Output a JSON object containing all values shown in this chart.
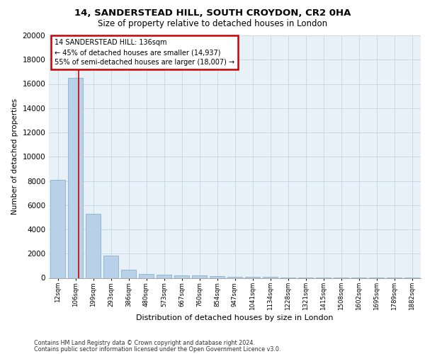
{
  "title1": "14, SANDERSTEAD HILL, SOUTH CROYDON, CR2 0HA",
  "title2": "Size of property relative to detached houses in London",
  "xlabel": "Distribution of detached houses by size in London",
  "ylabel": "Number of detached properties",
  "bar_values": [
    8100,
    16500,
    5300,
    1850,
    650,
    350,
    275,
    225,
    225,
    150,
    100,
    80,
    60,
    50,
    40,
    30,
    25,
    20,
    15,
    10,
    5
  ],
  "bar_labels": [
    "12sqm",
    "106sqm",
    "199sqm",
    "293sqm",
    "386sqm",
    "480sqm",
    "573sqm",
    "667sqm",
    "760sqm",
    "854sqm",
    "947sqm",
    "1041sqm",
    "1134sqm",
    "1228sqm",
    "1321sqm",
    "1415sqm",
    "1508sqm",
    "1602sqm",
    "1695sqm",
    "1789sqm",
    "1882sqm"
  ],
  "bar_color": "#b8d0e8",
  "bar_edge_color": "#7aaac8",
  "bar_width": 0.85,
  "vline_x": 1.18,
  "vline_color": "#cc0000",
  "ylim": [
    0,
    20000
  ],
  "yticks": [
    0,
    2000,
    4000,
    6000,
    8000,
    10000,
    12000,
    14000,
    16000,
    18000,
    20000
  ],
  "grid_color": "#c8dae8",
  "background_color": "#e8f0f8",
  "annotation_title": "14 SANDERSTEAD HILL: 136sqm",
  "annotation_line1": "← 45% of detached houses are smaller (14,937)",
  "annotation_line2": "55% of semi-detached houses are larger (18,007) →",
  "annotation_box_color": "#ffffff",
  "annotation_box_edge": "#cc0000",
  "footer1": "Contains HM Land Registry data © Crown copyright and database right 2024.",
  "footer2": "Contains public sector information licensed under the Open Government Licence v3.0."
}
